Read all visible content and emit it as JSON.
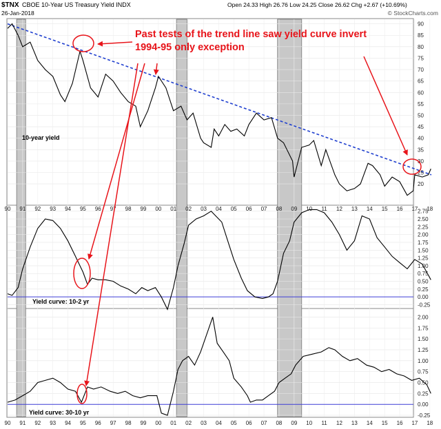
{
  "header": {
    "symbol": "$TNX",
    "name": "CBOE 10-Year US Treasury Yield INDX",
    "date": "26-Jan-2018",
    "quote": "Open 24.33  High 26.76  Low 24.25  Close 26.62  Chg +2.67 (+10.69%)",
    "watermark": "© StockCharts.com"
  },
  "annotation": {
    "line1": "Past tests of the trend line saw yield curve invert",
    "line2": "1994-95 only exception",
    "color": "#e8141a"
  },
  "colors": {
    "price_line": "#000000",
    "trend_line": "#1f3fcf",
    "zero_line": "#3d3dd6",
    "recession_shade": "#c8c8c8",
    "annotation": "#e8141a"
  },
  "chart_data": [
    {
      "type": "line",
      "label": "10-year yield",
      "x_range": [
        1990.0,
        2018.1
      ],
      "ylim": [
        11,
        92
      ],
      "yticks": [
        20,
        25,
        30,
        35,
        40,
        45,
        50,
        55,
        60,
        65,
        70,
        75,
        80,
        85,
        90
      ],
      "x_ticks": [
        "90",
        "91",
        "92",
        "93",
        "94",
        "95",
        "96",
        "97",
        "98",
        "99",
        "00",
        "01",
        "02",
        "03",
        "04",
        "05",
        "06",
        "07",
        "08",
        "09",
        "10",
        "11",
        "12",
        "13",
        "14",
        "15",
        "16",
        "17",
        "18"
      ],
      "trend_line": {
        "from": [
          1990.0,
          90
        ],
        "to": [
          2018.1,
          24
        ]
      },
      "recessions": [
        [
          1990.6,
          1991.2
        ],
        [
          2001.2,
          2001.9
        ],
        [
          2007.9,
          2009.5
        ]
      ],
      "series": [
        {
          "x": [
            1990.0,
            1990.3,
            1990.7,
            1991.0,
            1991.5,
            1992.0,
            1992.5,
            1993.0,
            1993.5,
            1993.8,
            1994.3,
            1994.8,
            1995.0,
            1995.5,
            1996.0,
            1996.5,
            1997.0,
            1997.5,
            1998.0,
            1998.5,
            1998.8,
            1999.3,
            1999.8,
            2000.0,
            2000.5,
            2001.0,
            2001.5,
            2001.9,
            2002.3,
            2002.8,
            2003.0,
            2003.5,
            2003.7,
            2004.0,
            2004.4,
            2004.8,
            2005.2,
            2005.7,
            2006.0,
            2006.5,
            2007.0,
            2007.5,
            2007.9,
            2008.3,
            2008.9,
            2009.0,
            2009.5,
            2010.0,
            2010.3,
            2010.8,
            2011.1,
            2011.7,
            2012.0,
            2012.5,
            2013.0,
            2013.4,
            2013.9,
            2014.2,
            2014.7,
            2015.0,
            2015.5,
            2016.0,
            2016.5,
            2016.9,
            2017.0,
            2017.5,
            2017.9,
            2018.07
          ],
          "values": [
            88,
            90,
            85,
            80,
            82,
            74,
            70,
            67,
            59,
            56,
            64,
            78,
            74,
            62,
            58,
            68,
            65,
            60,
            56,
            54,
            45,
            52,
            62,
            67,
            62,
            52,
            54,
            48,
            51,
            40,
            38,
            36,
            44,
            41,
            46,
            43,
            44,
            41,
            46,
            51,
            48,
            49,
            40,
            38,
            30,
            23,
            36,
            37,
            39,
            28,
            35,
            24,
            20,
            17,
            18,
            20,
            29,
            28,
            24,
            19,
            23,
            21,
            15,
            17,
            24,
            23,
            24,
            26.62
          ]
        }
      ]
    },
    {
      "type": "line",
      "label": "Yield curve: 10-2 yr",
      "x_range": [
        1990.0,
        2018.1
      ],
      "ylim": [
        -0.35,
        2.92
      ],
      "yticks": [
        -0.25,
        0.0,
        0.25,
        0.5,
        0.75,
        1.0,
        1.25,
        1.5,
        1.75,
        2.0,
        2.25,
        2.5,
        2.75
      ],
      "series": [
        {
          "x": [
            1990.0,
            1990.3,
            1990.7,
            1991.0,
            1991.5,
            1992.0,
            1992.5,
            1993.0,
            1993.5,
            1994.0,
            1994.5,
            1995.0,
            1995.3,
            1995.6,
            1996.0,
            1996.5,
            1997.0,
            1997.5,
            1998.0,
            1998.5,
            1998.9,
            1999.3,
            1999.8,
            2000.2,
            2000.6,
            2001.0,
            2001.3,
            2001.7,
            2002.0,
            2002.5,
            2003.0,
            2003.5,
            2003.8,
            2004.2,
            2004.6,
            2005.0,
            2005.5,
            2005.9,
            2006.4,
            2006.9,
            2007.3,
            2007.6,
            2007.9,
            2008.3,
            2008.7,
            2009.0,
            2009.5,
            2010.0,
            2010.5,
            2011.0,
            2011.5,
            2012.0,
            2012.5,
            2013.0,
            2013.5,
            2014.0,
            2014.5,
            2015.0,
            2015.5,
            2016.0,
            2016.5,
            2017.0,
            2017.5,
            2017.9,
            2018.07
          ],
          "values": [
            0.1,
            0.05,
            0.3,
            0.9,
            1.6,
            2.2,
            2.5,
            2.45,
            2.2,
            1.8,
            1.3,
            0.8,
            0.4,
            0.6,
            0.55,
            0.55,
            0.5,
            0.35,
            0.25,
            0.1,
            0.3,
            0.2,
            0.3,
            0.0,
            -0.4,
            0.3,
            1.0,
            1.7,
            2.3,
            2.5,
            2.6,
            2.75,
            2.6,
            2.4,
            1.8,
            1.2,
            0.6,
            0.2,
            0.0,
            -0.05,
            0.0,
            0.1,
            0.5,
            1.4,
            1.8,
            2.4,
            2.7,
            2.8,
            2.8,
            2.7,
            2.4,
            2.0,
            1.5,
            1.8,
            2.6,
            2.5,
            1.9,
            1.6,
            1.3,
            1.1,
            0.9,
            1.2,
            1.05,
            0.7,
            0.55
          ]
        }
      ]
    },
    {
      "type": "line",
      "label": "Yield curve: 30-10 yr",
      "x_range": [
        1990.0,
        2018.1
      ],
      "ylim": [
        -0.28,
        2.18
      ],
      "yticks": [
        -0.25,
        0.0,
        0.25,
        0.5,
        0.75,
        1.0,
        1.25,
        1.5,
        1.75,
        2.0
      ],
      "series": [
        {
          "x": [
            1990.0,
            1990.5,
            1991.0,
            1991.5,
            1992.0,
            1992.5,
            1993.0,
            1993.5,
            1994.0,
            1994.5,
            1994.9,
            1995.3,
            1995.7,
            1996.2,
            1996.8,
            1997.3,
            1997.8,
            1998.3,
            1998.8,
            1999.3,
            1999.9,
            2000.2,
            2000.6,
            2001.0,
            2001.3,
            2001.6,
            2002.0,
            2002.4,
            2002.8,
            2003.3,
            2003.6,
            2003.9,
            2004.3,
            2004.7,
            2005.0,
            2005.5,
            2005.9,
            2006.1,
            2006.5,
            2006.9,
            2007.3,
            2007.7,
            2008.0,
            2008.4,
            2008.8,
            2009.1,
            2009.6,
            2010.2,
            2010.8,
            2011.3,
            2011.7,
            2012.2,
            2012.7,
            2013.2,
            2013.8,
            2014.3,
            2014.8,
            2015.3,
            2015.8,
            2016.3,
            2016.8,
            2017.3,
            2017.8,
            2018.07
          ],
          "values": [
            0.05,
            0.1,
            0.2,
            0.3,
            0.5,
            0.55,
            0.6,
            0.5,
            0.35,
            0.3,
            0.05,
            0.4,
            0.35,
            0.4,
            0.3,
            0.25,
            0.3,
            0.2,
            0.15,
            0.2,
            0.2,
            -0.2,
            -0.25,
            0.3,
            0.8,
            1.0,
            1.1,
            0.9,
            1.2,
            1.7,
            2.0,
            1.4,
            1.2,
            1.0,
            0.6,
            0.4,
            0.2,
            0.05,
            0.1,
            0.1,
            0.2,
            0.3,
            0.5,
            0.6,
            0.7,
            0.9,
            1.1,
            1.15,
            1.2,
            1.3,
            1.25,
            1.1,
            1.0,
            1.05,
            0.9,
            0.85,
            0.75,
            0.8,
            0.7,
            0.65,
            0.55,
            0.6,
            0.45,
            0.25
          ]
        }
      ]
    }
  ]
}
